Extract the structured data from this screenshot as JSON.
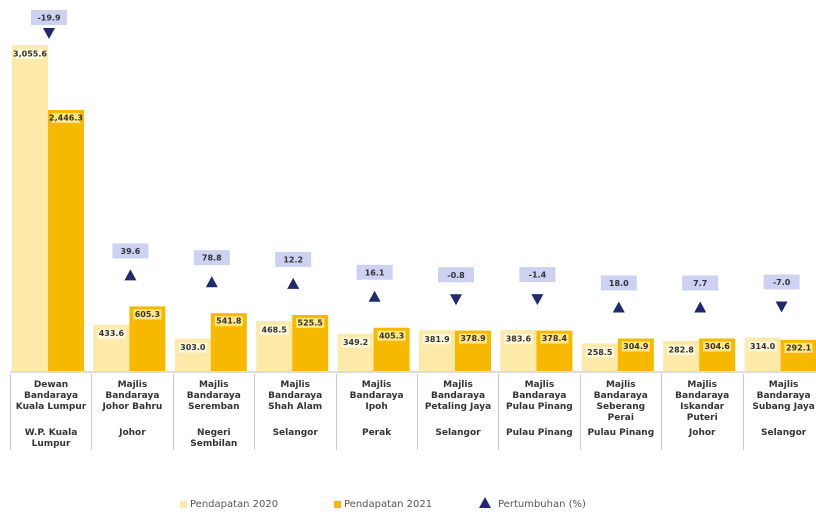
{
  "chart_data": {
    "type": "bar",
    "categories": [
      "Dewan Bandaraya Kuala Lumpur",
      "Majlis Bandaraya Johor Bahru",
      "Majlis Bandaraya Seremban",
      "Majlis Bandaraya Shah Alam",
      "Majlis Bandaraya Ipoh",
      "Majlis Bandaraya Petaling Jaya",
      "Majlis Bandaraya Pulau Pinang",
      "Majlis Bandaraya Seberang Perai",
      "Majlis Bandaraya Iskandar Puteri",
      "Majlis Bandaraya Subang Jaya"
    ],
    "regions": [
      "W.P. Kuala Lumpur",
      "Johor",
      "Negeri Sembilan",
      "Selangor",
      "Perak",
      "Selangor",
      "Pulau Pinang",
      "Pulau Pinang",
      "Johor",
      "Selangor"
    ],
    "series": [
      {
        "name": "Pendapatan 2020",
        "color": "#fde9a8",
        "values": [
          3055.6,
          433.6,
          303.0,
          468.5,
          349.2,
          381.9,
          383.6,
          258.5,
          282.8,
          314.0
        ],
        "value_labels": [
          "3,055.6",
          "433.6",
          "303.0",
          "468.5",
          "349.2",
          "381.9",
          "383.6",
          "258.5",
          "282.8",
          "314.0"
        ]
      },
      {
        "name": "Pendapatan 2021",
        "color": "#f6b900",
        "values": [
          2446.3,
          605.3,
          541.8,
          525.5,
          405.3,
          378.9,
          378.4,
          304.9,
          304.6,
          292.1
        ],
        "value_labels": [
          "2,446.3",
          "605.3",
          "541.8",
          "525.5",
          "405.3",
          "378.9",
          "378.4",
          "304.9",
          "304.6",
          "292.1"
        ]
      }
    ],
    "growth": {
      "name": "Pertumbuhan (%)",
      "color": "#1f2a6e",
      "box_color": "#cdd1f2",
      "values": [
        -19.9,
        39.6,
        78.8,
        12.2,
        16.1,
        -0.8,
        -1.4,
        18.0,
        7.7,
        -7.0
      ],
      "value_labels": [
        "-19.9",
        "39.6",
        "78.8",
        "12.2",
        "16.1",
        "-0.8",
        "-1.4",
        "18.0",
        "7.7",
        "-7.0"
      ]
    }
  }
}
